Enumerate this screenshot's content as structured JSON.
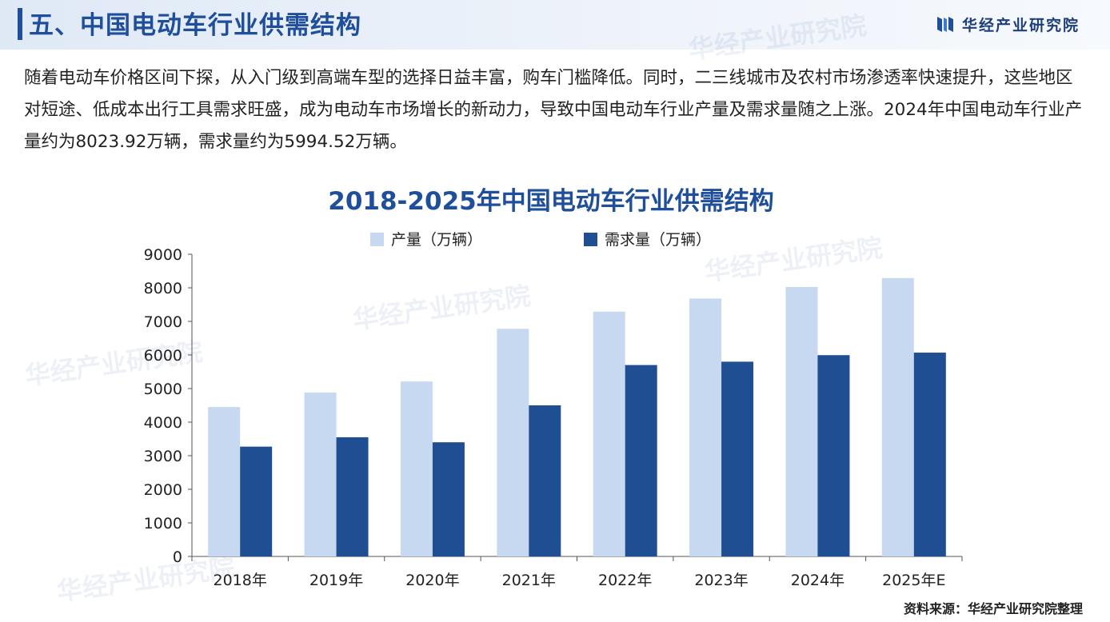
{
  "header": {
    "section_title": "五、中国电动车行业供需结构",
    "brand_name": "华经产业研究院"
  },
  "intro_text": "随着电动车价格区间下探，从入门级到高端车型的选择日益丰富，购车门槛降低。同时，二三线城市及农村市场渗透率快速提升，这些地区对短途、低成本出行工具需求旺盛，成为电动车市场增长的新动力，导致中国电动车行业产量及需求量随之上涨。2024年中国电动车行业产量约为8023.92万辆，需求量约为5994.52万辆。",
  "watermark_text": "华经产业研究院",
  "source_note": "资料来源：华经产业研究院整理",
  "colors": {
    "production": "#c6d9f1",
    "demand": "#1f4e93",
    "title": "#1f4e9a"
  },
  "chart_data": {
    "type": "bar",
    "title": "2018-2025年中国电动车行业供需结构",
    "categories": [
      "2018年",
      "2019年",
      "2020年",
      "2021年",
      "2022年",
      "2023年",
      "2024年",
      "2025年E"
    ],
    "series": [
      {
        "name": "产量（万辆）",
        "values": [
          4450,
          4880,
          5210,
          6780,
          7290,
          7680,
          8023.92,
          8290
        ]
      },
      {
        "name": "需求量（万辆）",
        "values": [
          3270,
          3550,
          3400,
          4500,
          5700,
          5800,
          5994.52,
          6070
        ]
      }
    ],
    "ylim": [
      0,
      9000
    ],
    "yticks": [
      0,
      1000,
      2000,
      3000,
      4000,
      5000,
      6000,
      7000,
      8000,
      9000
    ],
    "legend": "top-center",
    "grid": false
  }
}
